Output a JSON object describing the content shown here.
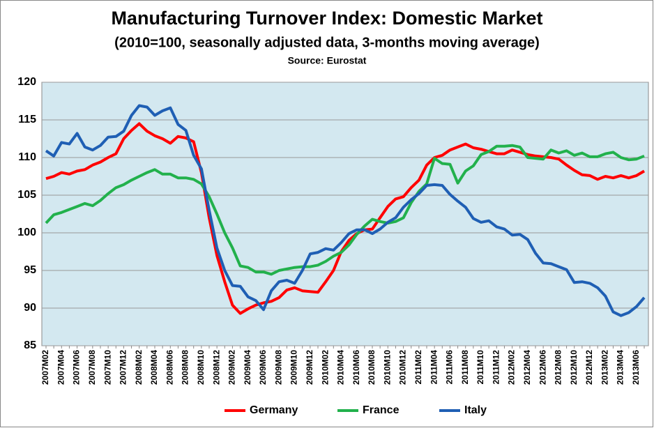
{
  "chart_data": {
    "type": "line",
    "title": "Manufacturing Turnover Index: Domestic Market",
    "subtitle": "(2010=100, seasonally adjusted data, 3-months moving average)",
    "source": "Source: Eurostat",
    "categories": [
      "2007M02",
      null,
      "2007M04",
      null,
      "2007M06",
      null,
      "2007M08",
      null,
      "2007M10",
      null,
      "2007M12",
      null,
      "2008M02",
      null,
      "2008M04",
      null,
      "2008M06",
      null,
      "2008M08",
      null,
      "2008M10",
      null,
      "2008M12",
      null,
      "2009M02",
      null,
      "2009M04",
      null,
      "2009M06",
      null,
      "2009M08",
      null,
      "2009M10",
      null,
      "2009M12",
      null,
      "2010M02",
      null,
      "2010M04",
      null,
      "2010M06",
      null,
      "2010M08",
      null,
      "2010M10",
      null,
      "2010M12",
      null,
      "2011M02",
      null,
      "2011M04",
      null,
      "2011M06",
      null,
      "2011M08",
      null,
      "2011M10",
      null,
      "2011M12",
      null,
      "2012M02",
      null,
      "2012M04",
      null,
      "2012M06",
      null,
      "2012M08",
      null,
      "2012M10",
      null,
      "2012M12",
      null,
      "2013M02",
      null,
      "2013M04",
      null,
      "2013M06",
      null
    ],
    "series": [
      {
        "name": "Germany",
        "color": "#ff0000",
        "values": [
          107.2,
          107.5,
          108.0,
          107.8,
          108.2,
          108.4,
          109.0,
          109.4,
          110.0,
          110.5,
          112.5,
          113.6,
          114.5,
          113.5,
          112.9,
          112.5,
          111.9,
          112.8,
          112.6,
          112.1,
          108.0,
          102.0,
          97.0,
          93.5,
          90.4,
          89.3,
          89.9,
          90.4,
          90.7,
          90.9,
          91.4,
          92.4,
          92.7,
          92.3,
          92.2,
          92.1,
          93.5,
          95.0,
          97.5,
          99.0,
          99.9,
          100.4,
          100.5,
          102.0,
          103.5,
          104.5,
          104.8,
          106.0,
          107.0,
          109.0,
          110.0,
          110.3,
          111.0,
          111.4,
          111.8,
          111.3,
          111.1,
          110.8,
          110.5,
          110.5,
          111.0,
          110.7,
          110.4,
          110.2,
          110.1,
          110.0,
          109.8,
          109.0,
          108.3,
          107.7,
          107.6,
          107.1,
          107.5,
          107.3,
          107.6,
          107.3,
          107.6,
          108.2
        ]
      },
      {
        "name": "France",
        "color": "#22b14c",
        "values": [
          101.3,
          102.4,
          102.7,
          103.1,
          103.5,
          103.9,
          103.6,
          104.3,
          105.2,
          106.0,
          106.4,
          107.0,
          107.5,
          108.0,
          108.4,
          107.8,
          107.8,
          107.3,
          107.3,
          107.1,
          106.5,
          104.8,
          102.5,
          100.0,
          98.0,
          95.6,
          95.4,
          94.8,
          94.8,
          94.5,
          95.0,
          95.2,
          95.4,
          95.5,
          95.5,
          95.7,
          96.2,
          96.9,
          97.4,
          98.4,
          99.8,
          100.9,
          101.8,
          101.5,
          101.3,
          101.5,
          102.0,
          104.0,
          105.5,
          106.5,
          109.9,
          109.2,
          109.1,
          106.6,
          108.2,
          108.9,
          110.4,
          110.8,
          111.5,
          111.5,
          111.6,
          111.4,
          110.0,
          109.9,
          109.8,
          111.0,
          110.6,
          110.9,
          110.3,
          110.6,
          110.1,
          110.1,
          110.5,
          110.7,
          110.0,
          109.7,
          109.8,
          110.2
        ]
      },
      {
        "name": "Italy",
        "color": "#1f5fb4",
        "values": [
          110.9,
          110.2,
          112.0,
          111.8,
          113.2,
          111.4,
          111.0,
          111.6,
          112.7,
          112.8,
          113.5,
          115.6,
          116.9,
          116.7,
          115.6,
          116.2,
          116.6,
          114.4,
          113.6,
          110.3,
          108.5,
          103.0,
          98.0,
          95.0,
          93.0,
          92.9,
          91.5,
          91.0,
          89.8,
          92.3,
          93.5,
          93.7,
          93.3,
          95.0,
          97.2,
          97.4,
          97.9,
          97.7,
          98.7,
          99.9,
          100.4,
          100.4,
          99.9,
          100.5,
          101.4,
          102.0,
          103.4,
          104.4,
          105.2,
          106.3,
          106.4,
          106.3,
          105.1,
          104.2,
          103.4,
          101.9,
          101.4,
          101.6,
          100.8,
          100.5,
          99.7,
          99.8,
          99.1,
          97.3,
          96.0,
          95.9,
          95.5,
          95.1,
          93.4,
          93.5,
          93.3,
          92.7,
          91.6,
          89.5,
          89.0,
          89.4,
          90.2,
          91.4
        ]
      }
    ],
    "ylim": [
      85,
      120
    ],
    "yticks": [
      85,
      90,
      95,
      100,
      105,
      110,
      115,
      120
    ],
    "grid": true,
    "legend": "bottom",
    "plot_background": "#d3e8f0"
  }
}
